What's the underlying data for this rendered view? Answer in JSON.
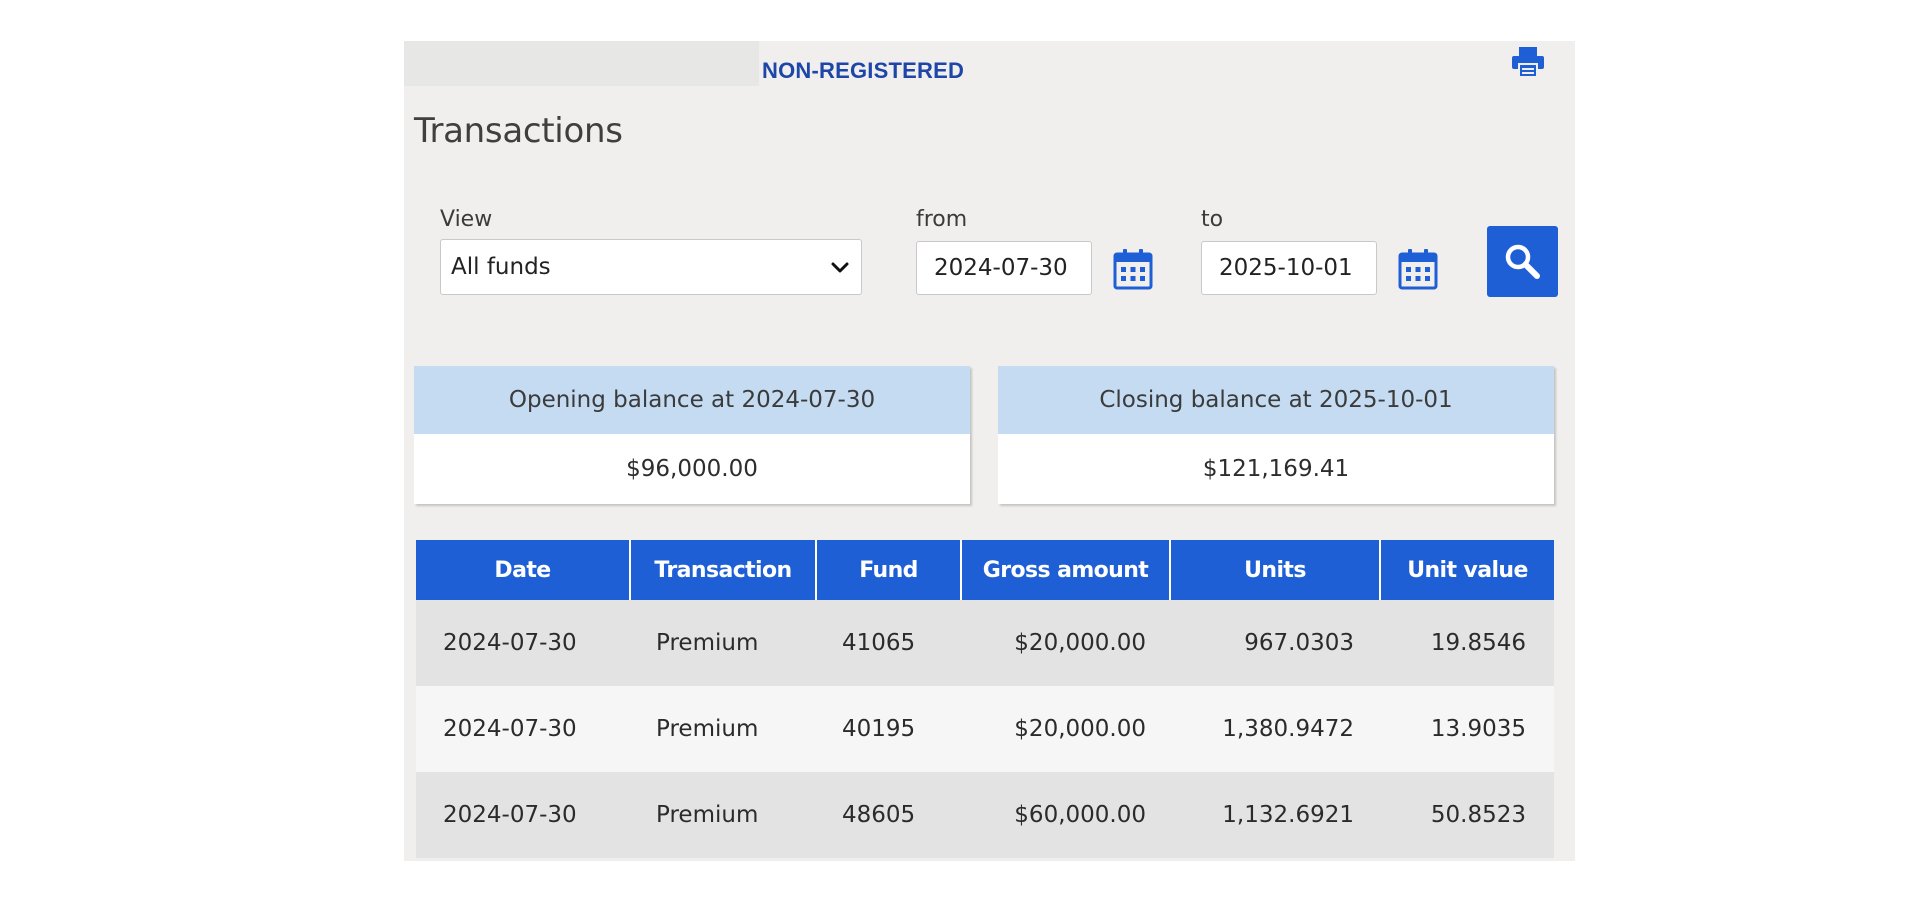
{
  "account": {
    "type_label": "NON-REGISTERED"
  },
  "page": {
    "title": "Transactions"
  },
  "filters": {
    "view_label": "View",
    "view_value": "All funds",
    "from_label": "from",
    "from_value": "2024-07-30",
    "to_label": "to",
    "to_value": "2025-10-01"
  },
  "balances": {
    "opening_label": "Opening balance at 2024-07-30",
    "opening_value": "$96,000.00",
    "closing_label": "Closing balance at 2025-10-01",
    "closing_value": "$121,169.41"
  },
  "table": {
    "headers": [
      "Date",
      "Transaction",
      "Fund",
      "Gross amount",
      "Units",
      "Unit value"
    ],
    "rows": [
      [
        "2024-07-30",
        "Premium",
        "41065",
        "$20,000.00",
        "967.0303",
        "19.8546"
      ],
      [
        "2024-07-30",
        "Premium",
        "40195",
        "$20,000.00",
        "1,380.9472",
        "13.9035"
      ],
      [
        "2024-07-30",
        "Premium",
        "48605",
        "$60,000.00",
        "1,132.6921",
        "50.8523"
      ]
    ]
  },
  "icons": {
    "print": "printer-icon",
    "calendar": "calendar-icon",
    "search": "search-icon",
    "dropdown": "chevron-down-icon"
  },
  "colors": {
    "primary_blue": "#1f5fd6",
    "account_label": "#1e46a8",
    "balance_header": "#c4dbf2",
    "panel_bg": "#f0efee"
  }
}
